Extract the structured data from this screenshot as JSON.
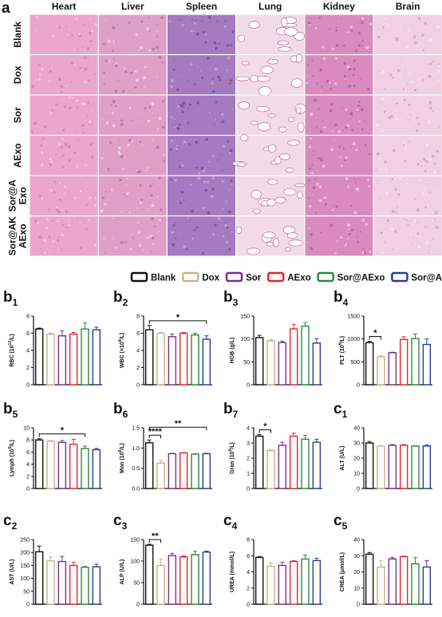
{
  "histology": {
    "label": "a",
    "columns": [
      "Heart",
      "Liver",
      "Spleen",
      "Lung",
      "Kidney",
      "Brain"
    ],
    "rows": [
      [
        "Blank"
      ],
      [
        "Dox"
      ],
      [
        "Sor"
      ],
      [
        "AExo"
      ],
      [
        "Sor@A",
        "Exo"
      ],
      [
        "Sor@AK",
        "AExo"
      ]
    ]
  },
  "groups": [
    {
      "name": "Blank",
      "color": "#111111"
    },
    {
      "name": "Dox",
      "color": "#c4b48a"
    },
    {
      "name": "Sor",
      "color": "#7a2f8f"
    },
    {
      "name": "AExo",
      "color": "#e5262b"
    },
    {
      "name": "Sor@AExo",
      "color": "#2b8a3b"
    },
    {
      "name": "Sor@AKAExo",
      "color": "#2a3a9c"
    }
  ],
  "chart_data": [
    {
      "type": "bar",
      "label": "b",
      "label_sub": "1",
      "ylabel": [
        "RBC (10",
        "12",
        "/L)"
      ],
      "ylim": [
        0,
        8
      ],
      "yticks": [
        0,
        2,
        4,
        6,
        8
      ],
      "values": [
        6.5,
        5.9,
        5.7,
        5.9,
        6.5,
        6.4
      ],
      "errors": [
        0.1,
        0.1,
        0.6,
        0.2,
        0.7,
        0.3
      ],
      "significance": []
    },
    {
      "type": "bar",
      "label": "b",
      "label_sub": "2",
      "ylabel": [
        "WBC (×10",
        "9",
        "/L)"
      ],
      "ylim": [
        0,
        8
      ],
      "yticks": [
        0,
        2,
        4,
        6,
        8
      ],
      "values": [
        6.4,
        6.0,
        5.6,
        6.0,
        5.8,
        5.3
      ],
      "errors": [
        0.5,
        0.1,
        0.3,
        0.1,
        0.2,
        0.4
      ],
      "significance": [
        {
          "from": 0,
          "to": 5,
          "label": "*"
        }
      ]
    },
    {
      "type": "bar",
      "label": "b",
      "label_sub": "3",
      "ylabel": [
        "HGB (g/L)"
      ],
      "ylim": [
        0,
        150
      ],
      "yticks": [
        0,
        50,
        100,
        150
      ],
      "values": [
        103,
        96,
        92,
        122,
        128,
        91
      ],
      "errors": [
        5,
        3,
        3,
        10,
        8,
        10
      ],
      "significance": []
    },
    {
      "type": "bar",
      "label": "b",
      "label_sub": "4",
      "ylabel": [
        "PLT (10",
        "9",
        "/L)"
      ],
      "ylim": [
        0,
        1500
      ],
      "yticks": [
        0,
        500,
        1000,
        1500
      ],
      "values": [
        920,
        610,
        700,
        990,
        1010,
        880
      ],
      "errors": [
        30,
        20,
        10,
        60,
        100,
        120
      ],
      "significance": [
        {
          "from": 0,
          "to": 1,
          "label": "*"
        }
      ]
    },
    {
      "type": "bar",
      "label": "b",
      "label_sub": "5",
      "ylabel": [
        "Lymph (10",
        "9",
        "/L)"
      ],
      "ylim": [
        0,
        10
      ],
      "yticks": [
        0,
        2,
        4,
        6,
        8,
        10
      ],
      "values": [
        8.0,
        7.8,
        7.6,
        7.3,
        6.6,
        6.4
      ],
      "errors": [
        0.2,
        0.1,
        0.3,
        0.8,
        0.4,
        0.2
      ],
      "significance": [
        {
          "from": 0,
          "to": 4,
          "label": "*"
        }
      ]
    },
    {
      "type": "bar",
      "label": "b",
      "label_sub": "6",
      "ylabel": [
        "Mon (10",
        "9",
        "/L)"
      ],
      "ylim": [
        0,
        1.5
      ],
      "yticks": [
        {
          "value": 0,
          "label": "0.0"
        },
        0.5,
        {
          "value": 1,
          "label": "1.0"
        },
        1.5
      ],
      "values": [
        1.13,
        0.63,
        0.86,
        0.88,
        0.85,
        0.86
      ],
      "errors": [
        0.07,
        0.06,
        0.01,
        0.01,
        0.01,
        0.01
      ],
      "significance": [
        {
          "from": 0,
          "to": 1,
          "label": "****"
        },
        {
          "from": 0,
          "to": 5,
          "label": "**"
        }
      ]
    },
    {
      "type": "bar",
      "label": "b",
      "label_sub": "7",
      "ylabel": [
        "Gran (10",
        "9",
        "/L)"
      ],
      "ylim": [
        0,
        4
      ],
      "yticks": [
        0,
        1,
        2,
        3,
        4
      ],
      "values": [
        3.45,
        2.5,
        2.85,
        3.45,
        3.25,
        3.05
      ],
      "errors": [
        0.1,
        0.05,
        0.2,
        0.2,
        0.25,
        0.2
      ],
      "significance": [
        {
          "from": 0,
          "to": 1,
          "label": "*"
        }
      ]
    },
    {
      "type": "bar",
      "label": "c",
      "label_sub": "1",
      "ylabel": [
        "ALT (U/L)"
      ],
      "ylim": [
        0,
        40
      ],
      "yticks": [
        0,
        10,
        20,
        30,
        40
      ],
      "values": [
        30,
        28,
        28.5,
        28.5,
        28,
        28
      ],
      "errors": [
        1,
        0.3,
        0.5,
        0.5,
        0.3,
        0.8
      ],
      "significance": []
    },
    {
      "type": "bar",
      "label": "c",
      "label_sub": "2",
      "ylabel": [
        "AST (U/L)"
      ],
      "ylim": [
        0,
        250
      ],
      "yticks": [
        0,
        50,
        100,
        150,
        200,
        250
      ],
      "values": [
        203,
        168,
        165,
        150,
        143,
        145
      ],
      "errors": [
        22,
        15,
        20,
        12,
        3,
        10
      ],
      "significance": []
    },
    {
      "type": "bar",
      "label": "c",
      "label_sub": "3",
      "ylabel": [
        "ALP (U/L)"
      ],
      "ylim": [
        0,
        150
      ],
      "yticks": [
        0,
        50,
        100,
        150
      ],
      "values": [
        137,
        90,
        113,
        110,
        115,
        121
      ],
      "errors": [
        2,
        15,
        5,
        2,
        8,
        2
      ],
      "significance": [
        {
          "from": 0,
          "to": 1,
          "label": "**"
        }
      ]
    },
    {
      "type": "bar",
      "label": "c",
      "label_sub": "4",
      "ylabel": [
        "UREA (mmol/L)"
      ],
      "ylim": [
        0,
        8
      ],
      "yticks": [
        0,
        2,
        4,
        6,
        8
      ],
      "values": [
        5.8,
        4.7,
        4.8,
        5.3,
        5.6,
        5.4
      ],
      "errors": [
        0.1,
        0.4,
        0.4,
        0.1,
        0.5,
        0.3
      ],
      "significance": []
    },
    {
      "type": "bar",
      "label": "c",
      "label_sub": "5",
      "ylabel": [
        "CREA (μmol/L)"
      ],
      "ylim": [
        0,
        40
      ],
      "yticks": [
        0,
        10,
        20,
        30,
        40
      ],
      "values": [
        31,
        23,
        28,
        29.5,
        25,
        23
      ],
      "errors": [
        1,
        4,
        1,
        0.3,
        4,
        4
      ],
      "significance": []
    }
  ]
}
